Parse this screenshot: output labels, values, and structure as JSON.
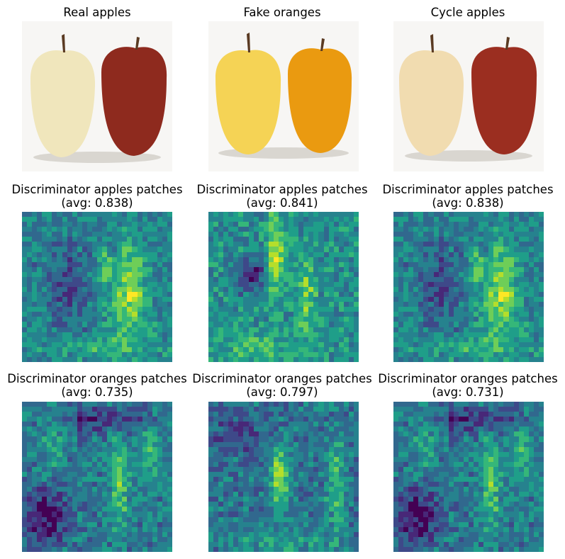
{
  "colormap": [
    "#440154",
    "#482878",
    "#3e4989",
    "#31688e",
    "#26828e",
    "#1f9e89",
    "#35b779",
    "#6ece58",
    "#b5de2b",
    "#fde725"
  ],
  "photo_colors": {
    "background": "#f7f6f4",
    "real_left": "#f0e6bc",
    "real_right": "#8e2a1e",
    "fake_left": "#f5d355",
    "fake_right": "#ea9a10",
    "cycle_left": "#f1dcb0",
    "cycle_right": "#9b2e20",
    "stem": "#5a3a22",
    "shadow": "#d9d6d0"
  },
  "row1": [
    {
      "title": "Real apples"
    },
    {
      "title": "Fake oranges"
    },
    {
      "title": "Cycle apples"
    }
  ],
  "row2": [
    {
      "title_line1": "Discriminator apples patches",
      "title_line2": "(avg: 0.838)"
    },
    {
      "title_line1": "Discriminator apples patches",
      "title_line2": "(avg: 0.841)"
    },
    {
      "title_line1": "Discriminator apples patches",
      "title_line2": "(avg: 0.838)"
    }
  ],
  "row3": [
    {
      "title_line1": "Discriminator oranges patches",
      "title_line2": "(avg: 0.735)"
    },
    {
      "title_line1": "Discriminator oranges patches",
      "title_line2": "(avg: 0.797)"
    },
    {
      "title_line1": "Discriminator oranges patches",
      "title_line2": "(avg: 0.731)"
    }
  ]
}
